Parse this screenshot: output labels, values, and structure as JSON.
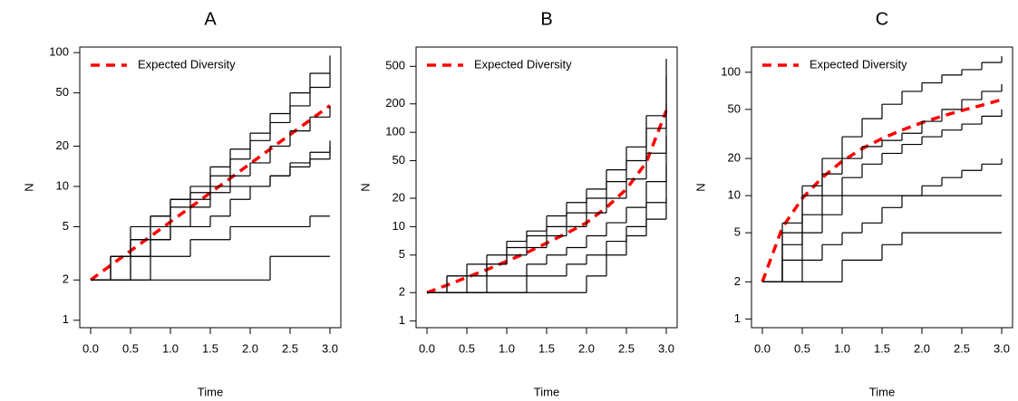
{
  "chart_data": [
    {
      "type": "line",
      "title": "A",
      "x_label": "Time",
      "y_label": "N",
      "yscale": "log",
      "step": true,
      "legend": "upper left",
      "xlim": [
        0,
        3
      ],
      "xticks": [
        {
          "value": 0,
          "label": "0.0"
        },
        0.5,
        {
          "value": 1,
          "label": "1.0"
        },
        1.5,
        {
          "value": 2,
          "label": "2.0"
        },
        2.5,
        {
          "value": 3,
          "label": "3.0"
        }
      ],
      "ylim": [
        0.88,
        110
      ],
      "yticks": [
        1,
        2,
        5,
        10,
        20,
        50,
        100
      ],
      "x": [
        0,
        0.25,
        0.5,
        0.75,
        1,
        1.25,
        1.5,
        1.75,
        2,
        2.25,
        2.5,
        2.75,
        3
      ],
      "series": [
        {
          "name": "Expected Diversity",
          "color": "#ff0000",
          "linestyle": "dashed",
          "values": [
            2,
            2.57,
            3.3,
            4.23,
            5.44,
            6.98,
            8.96,
            11.5,
            14.8,
            19,
            24.4,
            31.3,
            40.2
          ]
        },
        {
          "color": "#000000",
          "values": [
            2,
            3,
            4,
            6,
            8,
            10,
            14,
            19,
            25,
            35,
            50,
            70,
            95
          ]
        },
        {
          "color": "#000000",
          "values": [
            2,
            2,
            3,
            4,
            5,
            7,
            9,
            12,
            15,
            20,
            26,
            33,
            40
          ]
        },
        {
          "color": "#000000",
          "values": [
            2,
            2,
            2,
            2,
            2,
            2,
            2,
            2,
            2,
            3,
            3,
            3,
            3
          ]
        },
        {
          "color": "#000000",
          "values": [
            2,
            3,
            3,
            4,
            5,
            5,
            6,
            8,
            10,
            12,
            15,
            18,
            22
          ]
        },
        {
          "color": "#000000",
          "values": [
            2,
            2,
            4,
            5,
            7,
            9,
            12,
            16,
            22,
            30,
            40,
            55,
            70
          ]
        },
        {
          "color": "#000000",
          "values": [
            2,
            2,
            2,
            3,
            3,
            4,
            4,
            5,
            5,
            5,
            5,
            6,
            6
          ]
        },
        {
          "color": "#000000",
          "values": [
            2,
            3,
            5,
            6,
            8,
            8,
            10,
            10,
            10,
            12,
            14,
            16,
            20
          ]
        }
      ]
    },
    {
      "type": "line",
      "title": "B",
      "x_label": "Time",
      "y_label": "N",
      "yscale": "log",
      "step": true,
      "legend": "upper left",
      "xlim": [
        0,
        3
      ],
      "xticks": [
        {
          "value": 0,
          "label": "0.0"
        },
        0.5,
        {
          "value": 1,
          "label": "1.0"
        },
        1.5,
        {
          "value": 2,
          "label": "2.0"
        },
        2.5,
        {
          "value": 3,
          "label": "3.0"
        }
      ],
      "ylim": [
        0.85,
        800
      ],
      "yticks": [
        1,
        2,
        5,
        10,
        20,
        50,
        100,
        200,
        500
      ],
      "x": [
        0,
        0.25,
        0.5,
        0.75,
        1,
        1.25,
        1.5,
        1.75,
        2,
        2.25,
        2.5,
        2.75,
        3
      ],
      "series": [
        {
          "name": "Expected Diversity",
          "color": "#ff0000",
          "linestyle": "dashed",
          "values": [
            2,
            2.4,
            2.9,
            3.5,
            4.3,
            5.3,
            6.7,
            8.5,
            11,
            16,
            25,
            48,
            170
          ]
        },
        {
          "color": "#000000",
          "values": [
            2,
            3,
            4,
            5,
            7,
            9,
            13,
            18,
            25,
            40,
            70,
            150,
            600
          ]
        },
        {
          "color": "#000000",
          "values": [
            2,
            2,
            3,
            4,
            5,
            6,
            8,
            10,
            14,
            20,
            32,
            60,
            200
          ]
        },
        {
          "color": "#000000",
          "values": [
            2,
            2,
            2,
            2,
            2,
            3,
            3,
            4,
            5,
            7,
            10,
            18,
            45
          ]
        },
        {
          "color": "#000000",
          "values": [
            2,
            3,
            3,
            4,
            6,
            8,
            10,
            14,
            20,
            30,
            50,
            110,
            400
          ]
        },
        {
          "color": "#000000",
          "values": [
            2,
            2,
            2,
            3,
            3,
            4,
            5,
            6,
            8,
            11,
            16,
            30,
            90
          ]
        },
        {
          "color": "#000000",
          "values": [
            2,
            2,
            2,
            2,
            2,
            2,
            2,
            2,
            3,
            5,
            8,
            12,
            20
          ]
        }
      ]
    },
    {
      "type": "line",
      "title": "C",
      "x_label": "Time",
      "y_label": "N",
      "yscale": "log",
      "step": true,
      "legend": "upper left",
      "xlim": [
        0,
        3
      ],
      "xticks": [
        {
          "value": 0,
          "label": "0.0"
        },
        0.5,
        {
          "value": 1,
          "label": "1.0"
        },
        1.5,
        {
          "value": 2,
          "label": "2.0"
        },
        2.5,
        {
          "value": 3,
          "label": "3.0"
        }
      ],
      "ylim": [
        0.85,
        160
      ],
      "yticks": [
        1,
        2,
        5,
        10,
        20,
        50,
        100
      ],
      "x": [
        0,
        0.25,
        0.5,
        0.75,
        1,
        1.25,
        1.5,
        1.75,
        2,
        2.25,
        2.5,
        2.75,
        3
      ],
      "series": [
        {
          "name": "Expected Diversity",
          "color": "#ff0000",
          "linestyle": "dashed",
          "values": [
            2,
            5.5,
            9.5,
            14,
            19,
            24,
            29,
            34,
            39,
            44,
            49,
            54,
            60
          ]
        },
        {
          "color": "#000000",
          "values": [
            2,
            6,
            12,
            20,
            30,
            42,
            55,
            70,
            82,
            95,
            105,
            120,
            135
          ]
        },
        {
          "color": "#000000",
          "values": [
            2,
            4,
            7,
            10,
            14,
            18,
            22,
            26,
            30,
            34,
            38,
            44,
            50
          ]
        },
        {
          "color": "#000000",
          "values": [
            2,
            2,
            2,
            2,
            3,
            3,
            4,
            5,
            5,
            5,
            5,
            5,
            5
          ]
        },
        {
          "color": "#000000",
          "values": [
            2,
            3,
            5,
            7,
            10,
            10,
            10,
            10,
            10,
            10,
            10,
            10,
            10
          ]
        },
        {
          "color": "#000000",
          "values": [
            2,
            5,
            10,
            15,
            20,
            25,
            28,
            32,
            40,
            50,
            60,
            70,
            80
          ]
        },
        {
          "color": "#000000",
          "values": [
            2,
            2,
            3,
            4,
            5,
            6,
            8,
            10,
            12,
            14,
            16,
            18,
            20
          ]
        }
      ]
    }
  ]
}
